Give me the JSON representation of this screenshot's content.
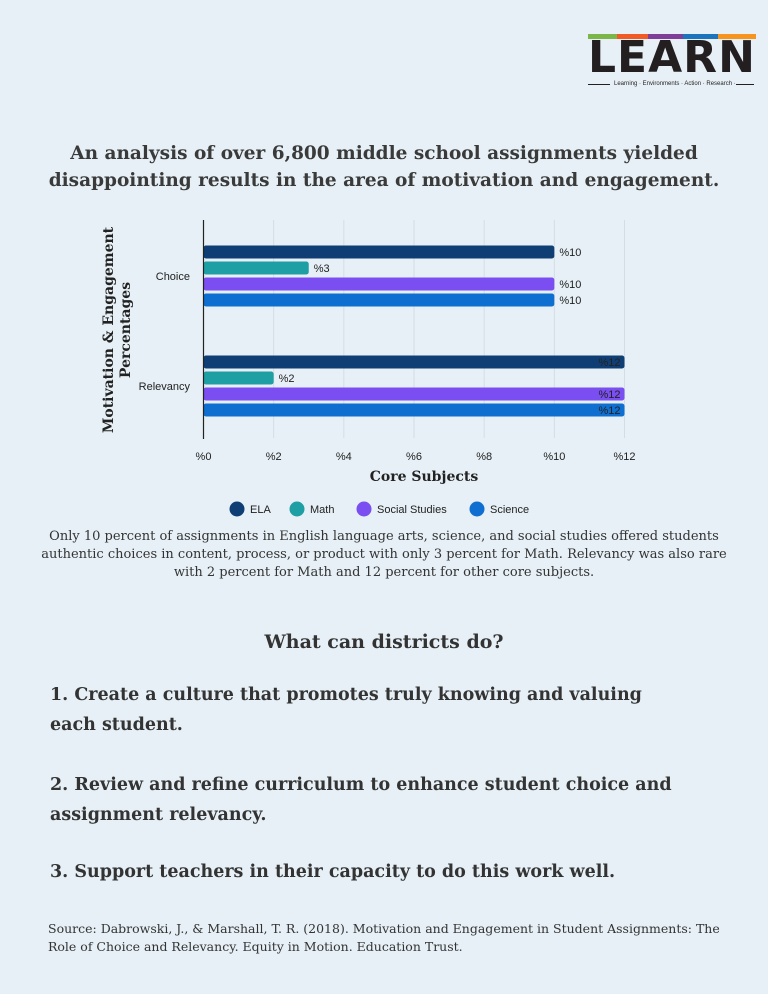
{
  "logo": {
    "letters": [
      "L",
      "E",
      "A",
      "R",
      "N"
    ],
    "letter_colors": [
      "#7ab648",
      "#f15a24",
      "#7f3f98",
      "#1c75bc",
      "#f7941d"
    ],
    "tagline": "Learning · Environments · Action · Research · Network"
  },
  "headline": "An analysis of over 6,800 middle school assignments yielded disappointing results in the area of motivation and engagement.",
  "chart_data": {
    "type": "bar",
    "orientation": "horizontal",
    "categories": [
      "Choice",
      "Relevancy"
    ],
    "series": [
      {
        "name": "ELA",
        "values": [
          10,
          12
        ],
        "color": "#0f3e75"
      },
      {
        "name": "Math",
        "values": [
          3,
          2
        ],
        "color": "#1e9fa3"
      },
      {
        "name": "Social Studies",
        "values": [
          10,
          12
        ],
        "color": "#7a4ef0"
      },
      {
        "name": "Science",
        "values": [
          10,
          12
        ],
        "color": "#0f6fd1"
      }
    ],
    "data_labels": [
      [
        "%10",
        "%12"
      ],
      [
        "%3",
        "%2"
      ],
      [
        "%10",
        "%12"
      ],
      [
        "%10",
        "%12"
      ]
    ],
    "xlim": [
      0,
      12
    ],
    "xticks": [
      0,
      2,
      4,
      6,
      8,
      10,
      12
    ],
    "xtick_labels": [
      "%0",
      "%2",
      "%4",
      "%6",
      "%8",
      "%10",
      "%12"
    ],
    "xlabel": "Core Subjects",
    "ylabel": "Motivation & Engagement Percentages",
    "grid": true,
    "legend": "bottom"
  },
  "summary": "Only 10 percent of assignments in English language arts, science, and social studies offered students authentic choices in content, process, or product with only 3 percent for Math. Relevancy was also rare with 2 percent for Math and 12 percent for other core subjects.",
  "question": "What can districts do?",
  "actions": [
    "1. Create a culture that promotes truly knowing and valuing each student.",
    "2. Review and refine curriculum to enhance student choice and assignment relevancy.",
    "3. Support teachers in their capacity to do this work well."
  ],
  "source": "Source: Dabrowski, J., & Marshall, T. R. (2018). Motivation and Engagement in Student Assignments: The Role of Choice and Relevancy. Equity in Motion. Education Trust."
}
